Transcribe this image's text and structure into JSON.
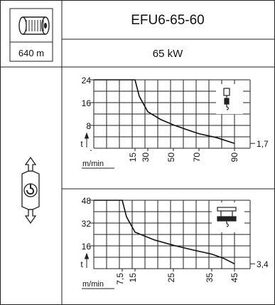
{
  "cable": {
    "length": "640 m"
  },
  "header": {
    "model": "EFU6-65-60",
    "power": "65 kW"
  },
  "charts": [
    {
      "y_ticks": [
        "24",
        "16",
        "8"
      ],
      "y_axis_label": "t",
      "x_axis_label": "m/min",
      "x_ticks": [
        "15",
        "30",
        "50",
        "70",
        "90"
      ],
      "end_value_label": "1,7",
      "reeving_icon": "single-line-hook-icon"
    },
    {
      "y_ticks": [
        "48",
        "32",
        "16"
      ],
      "y_axis_label": "t",
      "x_axis_label": "m/min",
      "x_ticks": [
        "7,5",
        "15",
        "25",
        "35",
        "45"
      ],
      "end_value_label": "3,4",
      "reeving_icon": "double-block-hook-icon"
    }
  ],
  "chart_data": [
    {
      "type": "line",
      "xlabel": "m/min",
      "ylabel": "t",
      "x_ticks": [
        15,
        30,
        50,
        70,
        90
      ],
      "y_ticks": [
        8,
        16,
        24
      ],
      "series": [
        {
          "x": [
            0,
            15,
            20,
            30,
            40,
            50,
            60,
            70,
            80,
            90
          ],
          "y": [
            24,
            24,
            18.2,
            12.8,
            10.1,
            8.2,
            6.6,
            5.1,
            3.7,
            1.7
          ]
        }
      ],
      "end_label": "1,7",
      "grid": true
    },
    {
      "type": "line",
      "xlabel": "m/min",
      "ylabel": "t",
      "x_ticks": [
        7.5,
        15,
        25,
        35,
        45
      ],
      "y_ticks": [
        16,
        32,
        48
      ],
      "series": [
        {
          "x": [
            0,
            7.5,
            10,
            15,
            20,
            25,
            30,
            35,
            40,
            45
          ],
          "y": [
            48,
            48,
            36.4,
            25.6,
            20.2,
            16.4,
            13.2,
            10.2,
            7.4,
            3.4
          ]
        }
      ],
      "end_label": "3,4",
      "grid": true
    }
  ]
}
